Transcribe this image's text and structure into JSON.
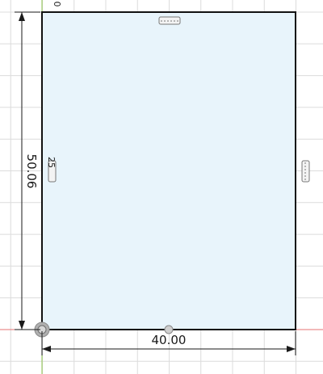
{
  "sketch": {
    "width_dimension": "40.00",
    "height_dimension": "50.06",
    "inline_label": "25",
    "corner_fragment": "0"
  },
  "colors": {
    "profile_fill": "#e8f4fb",
    "profile_stroke": "#111111",
    "grid_minor": "#ececec",
    "grid_major": "#dcdcdc",
    "axis_red": "#e57373",
    "axis_green": "#8bc34a",
    "dimension_line": "#1a1a1a"
  }
}
